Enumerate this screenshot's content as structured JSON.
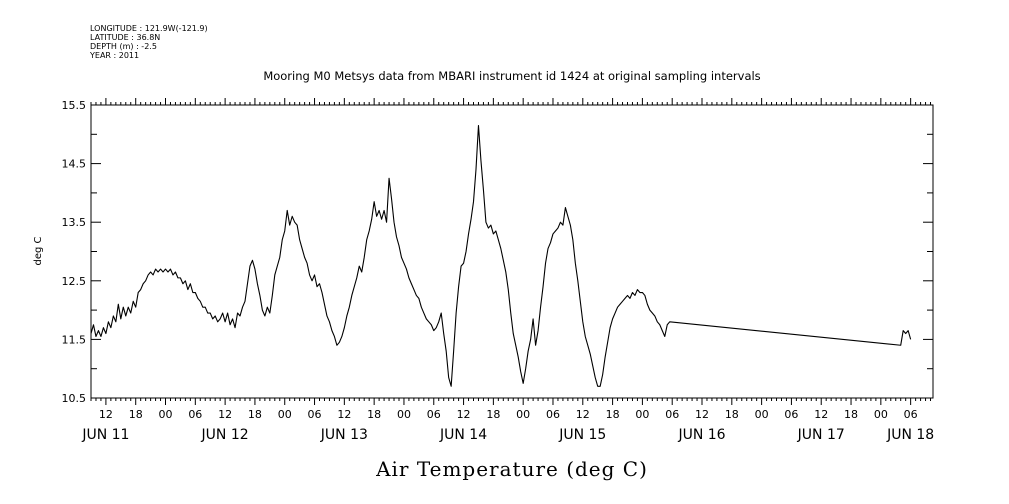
{
  "metadata": {
    "lines": [
      "LONGITUDE : 121.9W(-121.9)",
      "LATITUDE : 36.8N",
      "DEPTH (m) : -2.5",
      "YEAR : 2011"
    ]
  },
  "chart_data": {
    "type": "line",
    "title": "Mooring M0 Metsys data from MBARI instrument id 1424 at original sampling intervals",
    "xlabel": "Air Temperature (deg C)",
    "ylabel": "deg C",
    "ylim": [
      10.5,
      15.5
    ],
    "yticks": [
      10.5,
      11.5,
      12.5,
      13.5,
      14.5,
      15.5
    ],
    "xlim_hours": [
      9,
      178.5
    ],
    "x_unit": "hours since 2011-06-11 00:00",
    "hour_ticks": [
      {
        "h": 12,
        "label": "12"
      },
      {
        "h": 18,
        "label": "18"
      },
      {
        "h": 24,
        "label": "00"
      },
      {
        "h": 30,
        "label": "06"
      },
      {
        "h": 36,
        "label": "12"
      },
      {
        "h": 42,
        "label": "18"
      },
      {
        "h": 48,
        "label": "00"
      },
      {
        "h": 54,
        "label": "06"
      },
      {
        "h": 60,
        "label": "12"
      },
      {
        "h": 66,
        "label": "18"
      },
      {
        "h": 72,
        "label": "00"
      },
      {
        "h": 78,
        "label": "06"
      },
      {
        "h": 84,
        "label": "12"
      },
      {
        "h": 90,
        "label": "18"
      },
      {
        "h": 96,
        "label": "00"
      },
      {
        "h": 102,
        "label": "06"
      },
      {
        "h": 108,
        "label": "12"
      },
      {
        "h": 114,
        "label": "18"
      },
      {
        "h": 120,
        "label": "00"
      },
      {
        "h": 126,
        "label": "06"
      },
      {
        "h": 132,
        "label": "12"
      },
      {
        "h": 138,
        "label": "18"
      },
      {
        "h": 144,
        "label": "00"
      },
      {
        "h": 150,
        "label": "06"
      },
      {
        "h": 156,
        "label": "12"
      },
      {
        "h": 162,
        "label": "18"
      },
      {
        "h": 168,
        "label": "00"
      },
      {
        "h": 174,
        "label": "06"
      }
    ],
    "date_labels": [
      {
        "h": 12,
        "label": "JUN 11"
      },
      {
        "h": 36,
        "label": "JUN 12"
      },
      {
        "h": 60,
        "label": "JUN 13"
      },
      {
        "h": 84,
        "label": "JUN 14"
      },
      {
        "h": 108,
        "label": "JUN 15"
      },
      {
        "h": 132,
        "label": "JUN 16"
      },
      {
        "h": 156,
        "label": "JUN 17"
      },
      {
        "h": 174,
        "label": "JUN 18"
      }
    ],
    "series": [
      {
        "line_color": "#000000",
        "points": [
          [
            9.0,
            11.6
          ],
          [
            9.5,
            11.75
          ],
          [
            10.0,
            11.55
          ],
          [
            10.5,
            11.65
          ],
          [
            11.0,
            11.55
          ],
          [
            11.5,
            11.7
          ],
          [
            12.0,
            11.6
          ],
          [
            12.5,
            11.8
          ],
          [
            13.0,
            11.7
          ],
          [
            13.5,
            11.9
          ],
          [
            14.0,
            11.8
          ],
          [
            14.5,
            12.1
          ],
          [
            15.0,
            11.85
          ],
          [
            15.5,
            12.05
          ],
          [
            16.0,
            11.9
          ],
          [
            16.5,
            12.05
          ],
          [
            17.0,
            11.95
          ],
          [
            17.5,
            12.15
          ],
          [
            18.0,
            12.05
          ],
          [
            18.5,
            12.3
          ],
          [
            19.0,
            12.35
          ],
          [
            19.5,
            12.45
          ],
          [
            20.0,
            12.5
          ],
          [
            20.5,
            12.6
          ],
          [
            21.0,
            12.65
          ],
          [
            21.5,
            12.6
          ],
          [
            22.0,
            12.7
          ],
          [
            22.5,
            12.65
          ],
          [
            23.0,
            12.7
          ],
          [
            23.5,
            12.65
          ],
          [
            24.0,
            12.7
          ],
          [
            24.5,
            12.65
          ],
          [
            25.0,
            12.7
          ],
          [
            25.5,
            12.6
          ],
          [
            26.0,
            12.65
          ],
          [
            26.5,
            12.55
          ],
          [
            27.0,
            12.55
          ],
          [
            27.5,
            12.45
          ],
          [
            28.0,
            12.5
          ],
          [
            28.5,
            12.35
          ],
          [
            29.0,
            12.45
          ],
          [
            29.5,
            12.3
          ],
          [
            30.0,
            12.3
          ],
          [
            30.5,
            12.2
          ],
          [
            31.0,
            12.15
          ],
          [
            31.5,
            12.05
          ],
          [
            32.0,
            12.05
          ],
          [
            32.5,
            11.95
          ],
          [
            33.0,
            11.95
          ],
          [
            33.5,
            11.85
          ],
          [
            34.0,
            11.9
          ],
          [
            34.5,
            11.8
          ],
          [
            35.0,
            11.85
          ],
          [
            35.5,
            11.95
          ],
          [
            36.0,
            11.8
          ],
          [
            36.5,
            11.95
          ],
          [
            37.0,
            11.75
          ],
          [
            37.5,
            11.85
          ],
          [
            38.0,
            11.7
          ],
          [
            38.5,
            11.95
          ],
          [
            39.0,
            11.9
          ],
          [
            39.5,
            12.05
          ],
          [
            40.0,
            12.15
          ],
          [
            40.5,
            12.45
          ],
          [
            41.0,
            12.75
          ],
          [
            41.5,
            12.85
          ],
          [
            42.0,
            12.7
          ],
          [
            42.5,
            12.45
          ],
          [
            43.0,
            12.25
          ],
          [
            43.5,
            12.0
          ],
          [
            44.0,
            11.9
          ],
          [
            44.5,
            12.05
          ],
          [
            45.0,
            11.95
          ],
          [
            45.5,
            12.25
          ],
          [
            46.0,
            12.6
          ],
          [
            46.5,
            12.75
          ],
          [
            47.0,
            12.9
          ],
          [
            47.5,
            13.2
          ],
          [
            48.0,
            13.35
          ],
          [
            48.5,
            13.7
          ],
          [
            49.0,
            13.45
          ],
          [
            49.5,
            13.6
          ],
          [
            50.0,
            13.5
          ],
          [
            50.5,
            13.45
          ],
          [
            51.0,
            13.2
          ],
          [
            51.5,
            13.05
          ],
          [
            52.0,
            12.9
          ],
          [
            52.5,
            12.8
          ],
          [
            53.0,
            12.6
          ],
          [
            53.5,
            12.5
          ],
          [
            54.0,
            12.6
          ],
          [
            54.5,
            12.4
          ],
          [
            55.0,
            12.45
          ],
          [
            55.5,
            12.3
          ],
          [
            56.0,
            12.1
          ],
          [
            56.5,
            11.9
          ],
          [
            57.0,
            11.8
          ],
          [
            57.5,
            11.65
          ],
          [
            58.0,
            11.55
          ],
          [
            58.5,
            11.4
          ],
          [
            59.0,
            11.45
          ],
          [
            59.5,
            11.55
          ],
          [
            60.0,
            11.7
          ],
          [
            60.5,
            11.9
          ],
          [
            61.0,
            12.05
          ],
          [
            61.5,
            12.25
          ],
          [
            62.0,
            12.4
          ],
          [
            62.5,
            12.55
          ],
          [
            63.0,
            12.75
          ],
          [
            63.5,
            12.65
          ],
          [
            64.0,
            12.9
          ],
          [
            64.5,
            13.2
          ],
          [
            65.0,
            13.35
          ],
          [
            65.5,
            13.55
          ],
          [
            66.0,
            13.85
          ],
          [
            66.5,
            13.6
          ],
          [
            67.0,
            13.7
          ],
          [
            67.5,
            13.55
          ],
          [
            68.0,
            13.7
          ],
          [
            68.5,
            13.5
          ],
          [
            69.0,
            14.25
          ],
          [
            69.5,
            13.9
          ],
          [
            70.0,
            13.5
          ],
          [
            70.5,
            13.25
          ],
          [
            71.0,
            13.1
          ],
          [
            71.5,
            12.9
          ],
          [
            72.0,
            12.8
          ],
          [
            72.5,
            12.7
          ],
          [
            73.0,
            12.55
          ],
          [
            73.5,
            12.45
          ],
          [
            74.0,
            12.35
          ],
          [
            74.5,
            12.25
          ],
          [
            75.0,
            12.2
          ],
          [
            75.5,
            12.05
          ],
          [
            76.0,
            11.95
          ],
          [
            76.5,
            11.85
          ],
          [
            77.0,
            11.8
          ],
          [
            77.5,
            11.75
          ],
          [
            78.0,
            11.65
          ],
          [
            78.5,
            11.7
          ],
          [
            79.0,
            11.8
          ],
          [
            79.5,
            11.95
          ],
          [
            80.0,
            11.6
          ],
          [
            80.5,
            11.3
          ],
          [
            81.0,
            10.85
          ],
          [
            81.5,
            10.7
          ],
          [
            82.0,
            11.3
          ],
          [
            82.5,
            11.95
          ],
          [
            83.0,
            12.4
          ],
          [
            83.5,
            12.75
          ],
          [
            84.0,
            12.8
          ],
          [
            84.5,
            13.0
          ],
          [
            85.0,
            13.3
          ],
          [
            85.5,
            13.55
          ],
          [
            86.0,
            13.85
          ],
          [
            86.5,
            14.4
          ],
          [
            87.0,
            15.15
          ],
          [
            87.5,
            14.55
          ],
          [
            88.0,
            14.05
          ],
          [
            88.5,
            13.5
          ],
          [
            89.0,
            13.4
          ],
          [
            89.5,
            13.45
          ],
          [
            90.0,
            13.3
          ],
          [
            90.5,
            13.35
          ],
          [
            91.0,
            13.2
          ],
          [
            91.5,
            13.05
          ],
          [
            92.0,
            12.85
          ],
          [
            92.5,
            12.65
          ],
          [
            93.0,
            12.35
          ],
          [
            93.5,
            11.95
          ],
          [
            94.0,
            11.6
          ],
          [
            94.5,
            11.4
          ],
          [
            95.0,
            11.2
          ],
          [
            95.5,
            10.95
          ],
          [
            96.0,
            10.75
          ],
          [
            96.5,
            11.0
          ],
          [
            97.0,
            11.3
          ],
          [
            97.5,
            11.5
          ],
          [
            98.0,
            11.85
          ],
          [
            98.5,
            11.4
          ],
          [
            99.0,
            11.65
          ],
          [
            99.5,
            12.05
          ],
          [
            100.0,
            12.4
          ],
          [
            100.5,
            12.8
          ],
          [
            101.0,
            13.05
          ],
          [
            101.5,
            13.15
          ],
          [
            102.0,
            13.3
          ],
          [
            102.5,
            13.35
          ],
          [
            103.0,
            13.4
          ],
          [
            103.5,
            13.5
          ],
          [
            104.0,
            13.45
          ],
          [
            104.5,
            13.75
          ],
          [
            105.0,
            13.6
          ],
          [
            105.5,
            13.45
          ],
          [
            106.0,
            13.2
          ],
          [
            106.5,
            12.8
          ],
          [
            107.0,
            12.5
          ],
          [
            107.5,
            12.15
          ],
          [
            108.0,
            11.8
          ],
          [
            108.5,
            11.55
          ],
          [
            109.0,
            11.4
          ],
          [
            109.5,
            11.25
          ],
          [
            110.0,
            11.05
          ],
          [
            110.5,
            10.85
          ],
          [
            111.0,
            10.7
          ],
          [
            111.5,
            10.7
          ],
          [
            112.0,
            10.9
          ],
          [
            112.5,
            11.2
          ],
          [
            113.0,
            11.45
          ],
          [
            113.5,
            11.7
          ],
          [
            114.0,
            11.85
          ],
          [
            114.5,
            11.95
          ],
          [
            115.0,
            12.05
          ],
          [
            115.5,
            12.1
          ],
          [
            116.0,
            12.15
          ],
          [
            116.5,
            12.2
          ],
          [
            117.0,
            12.25
          ],
          [
            117.5,
            12.2
          ],
          [
            118.0,
            12.3
          ],
          [
            118.5,
            12.25
          ],
          [
            119.0,
            12.35
          ],
          [
            119.5,
            12.3
          ],
          [
            120.0,
            12.3
          ],
          [
            120.5,
            12.25
          ],
          [
            121.0,
            12.1
          ],
          [
            121.5,
            12.0
          ],
          [
            122.0,
            11.95
          ],
          [
            122.5,
            11.9
          ],
          [
            123.0,
            11.8
          ],
          [
            123.5,
            11.75
          ],
          [
            124.0,
            11.65
          ],
          [
            124.5,
            11.55
          ],
          [
            125.0,
            11.75
          ],
          [
            125.5,
            11.8
          ],
          [
            172.0,
            11.4
          ],
          [
            172.5,
            11.65
          ],
          [
            173.0,
            11.6
          ],
          [
            173.5,
            11.65
          ],
          [
            174.0,
            11.5
          ]
        ]
      }
    ]
  }
}
